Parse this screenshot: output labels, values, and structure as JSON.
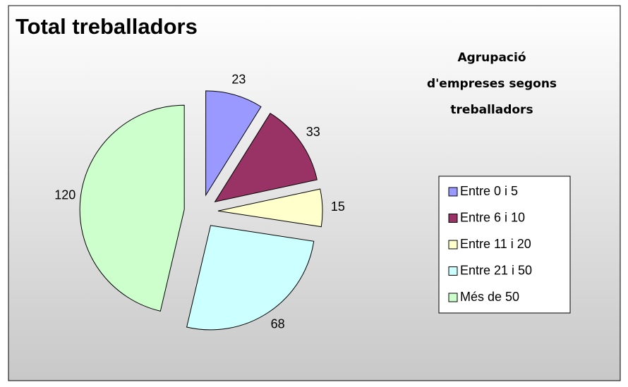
{
  "chart_data": {
    "type": "pie",
    "title": "Total treballadors",
    "subtitle": [
      "Agrupació",
      "d'empreses segons",
      "treballadors"
    ],
    "categories": [
      "Entre 0 i 5",
      "Entre 6 i 10",
      "Entre 11 i 20",
      "Entre 21 i 50",
      "Més de 50"
    ],
    "values": [
      23,
      33,
      15,
      68,
      120
    ],
    "colors": [
      "#9999ff",
      "#993366",
      "#ffffcc",
      "#ccffff",
      "#ccffcc"
    ],
    "legend": "right"
  }
}
